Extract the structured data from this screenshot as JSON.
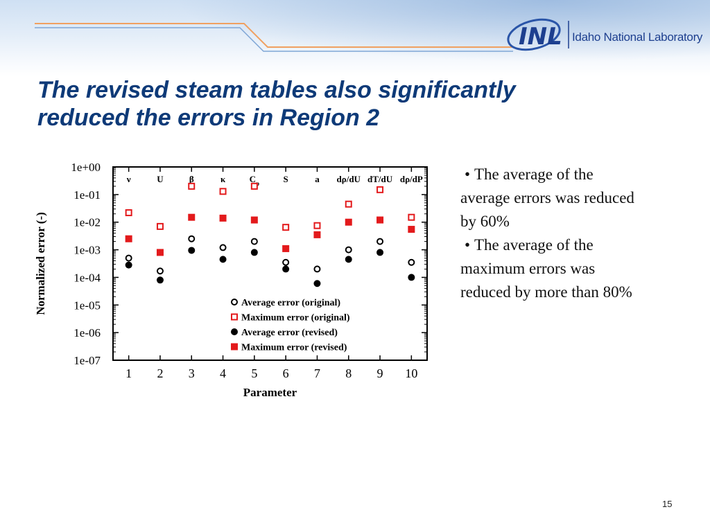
{
  "slide": {
    "logo_text": "Idaho National Laboratory",
    "logo_mark": "INL",
    "title_line1": "The revised steam tables also significantly",
    "title_line2": "reduced the errors in Region 2",
    "bullets": [
      "The average of the average errors was reduced by 60%",
      "The average of the maximum errors was reduced by more than 80%"
    ],
    "page_number": "15",
    "colors": {
      "title": "#0e3a78",
      "red": "#e31a1c",
      "black": "#000000"
    }
  },
  "chart_data": {
    "type": "scatter",
    "xlabel": "Parameter",
    "ylabel": "Normalized error (-)",
    "y_scale": "log",
    "ylim": [
      1e-07,
      1
    ],
    "xlim": [
      0.5,
      10.5
    ],
    "x": [
      1,
      2,
      3,
      4,
      5,
      6,
      7,
      8,
      9,
      10
    ],
    "x_tick_labels": [
      "1",
      "2",
      "3",
      "4",
      "5",
      "6",
      "7",
      "8",
      "9",
      "10"
    ],
    "y_tick_labels": [
      "1e+00",
      "1e-01",
      "1e-02",
      "1e-03",
      "1e-04",
      "1e-05",
      "1e-06",
      "1e-07"
    ],
    "top_labels": [
      {
        "text": "ν",
        "sub": ""
      },
      {
        "text": "U",
        "sub": ""
      },
      {
        "text": "β",
        "sub": ""
      },
      {
        "text": "κ",
        "sub": ""
      },
      {
        "text": "C",
        "sub": "p"
      },
      {
        "text": "S",
        "sub": ""
      },
      {
        "text": "a",
        "sub": ""
      },
      {
        "text": "dρ/dU",
        "sub": ""
      },
      {
        "text": "dT/dU",
        "sub": ""
      },
      {
        "text": "dρ/dP",
        "sub": ""
      }
    ],
    "legend_position": "lower-right",
    "series": [
      {
        "name": "Average error (original)",
        "marker": "open-circle",
        "color": "#000000",
        "values": [
          0.0005,
          0.00017,
          0.0025,
          0.0012,
          0.002,
          0.00035,
          0.0002,
          0.001,
          0.002,
          0.00035
        ]
      },
      {
        "name": "Maximum error (original)",
        "marker": "open-square",
        "color": "#e31a1c",
        "values": [
          0.022,
          0.007,
          0.2,
          0.13,
          0.2,
          0.0065,
          0.0075,
          0.045,
          0.15,
          0.015
        ]
      },
      {
        "name": "Average error (revised)",
        "marker": "filled-circle",
        "color": "#000000",
        "values": [
          0.00028,
          8e-05,
          0.00095,
          0.00045,
          0.0008,
          0.0002,
          6e-05,
          0.00045,
          0.0008,
          0.0001
        ]
      },
      {
        "name": "Maximum error (revised)",
        "marker": "filled-square",
        "color": "#e31a1c",
        "values": [
          0.0025,
          0.0008,
          0.015,
          0.014,
          0.012,
          0.0011,
          0.0035,
          0.01,
          0.012,
          0.0055
        ]
      }
    ]
  }
}
